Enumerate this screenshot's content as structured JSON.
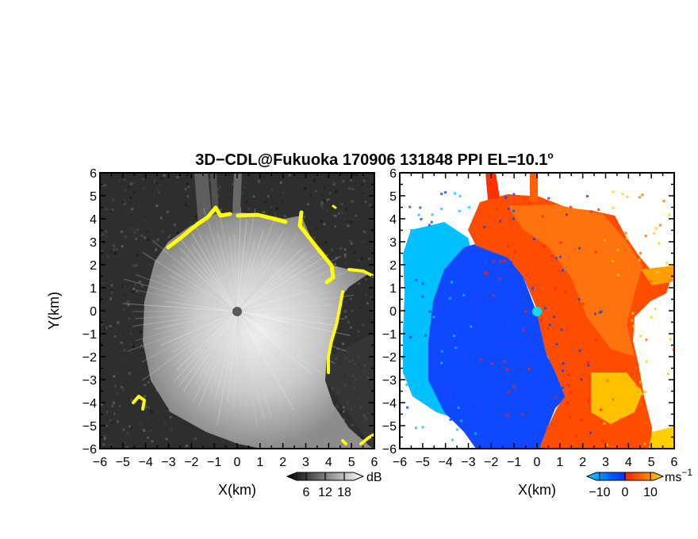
{
  "chart_data": [
    {
      "type": "heatmap",
      "panel": "reflectivity",
      "title_prefix": "3D−CDL@Fukuoka 170906 131848 PPI EL=10.1",
      "title_suffix": "o",
      "xlabel": "X(km)",
      "ylabel": "Y(km)",
      "xlim": [
        -6,
        6
      ],
      "ylim": [
        -6,
        6
      ],
      "x_ticks": [
        "−6",
        "−5",
        "−4",
        "−3",
        "−2",
        "−1",
        "0",
        "1",
        "2",
        "3",
        "4",
        "5",
        "6"
      ],
      "y_ticks": [
        "6",
        "5",
        "4",
        "3",
        "2",
        "1",
        "0",
        "−1",
        "−2",
        "−3",
        "−4",
        "−5",
        "−6"
      ],
      "colormap": "grayscale with yellow saturation",
      "colorbar": {
        "unit": "dB",
        "ticks": [
          "6",
          "12",
          "18"
        ],
        "range": [
          0,
          24
        ]
      },
      "high_color": "#ffff00"
    },
    {
      "type": "heatmap",
      "panel": "doppler velocity",
      "xlabel": "X(km)",
      "xlim": [
        -6,
        6
      ],
      "ylim": [
        -6,
        6
      ],
      "x_ticks": [
        "−6",
        "−5",
        "−4",
        "−3",
        "−2",
        "−1",
        "0",
        "1",
        "2",
        "3",
        "4",
        "5",
        "6"
      ],
      "y_ticks": [
        "6",
        "5",
        "4",
        "3",
        "2",
        "1",
        "0",
        "−1",
        "−2",
        "−3",
        "−4",
        "−5",
        "−6"
      ],
      "colormap": "diverging cyan-blue / red-yellow",
      "colorbar": {
        "unit": "ms",
        "unit_exp": "−1",
        "ticks": [
          "−10",
          "0",
          "10"
        ],
        "range": [
          -15,
          15
        ]
      },
      "colors": {
        "cyan": "#00c8ff",
        "blue": "#1040ff",
        "red": "#ff2000",
        "orange": "#ff6a00",
        "yellow": "#ffd000"
      }
    }
  ]
}
